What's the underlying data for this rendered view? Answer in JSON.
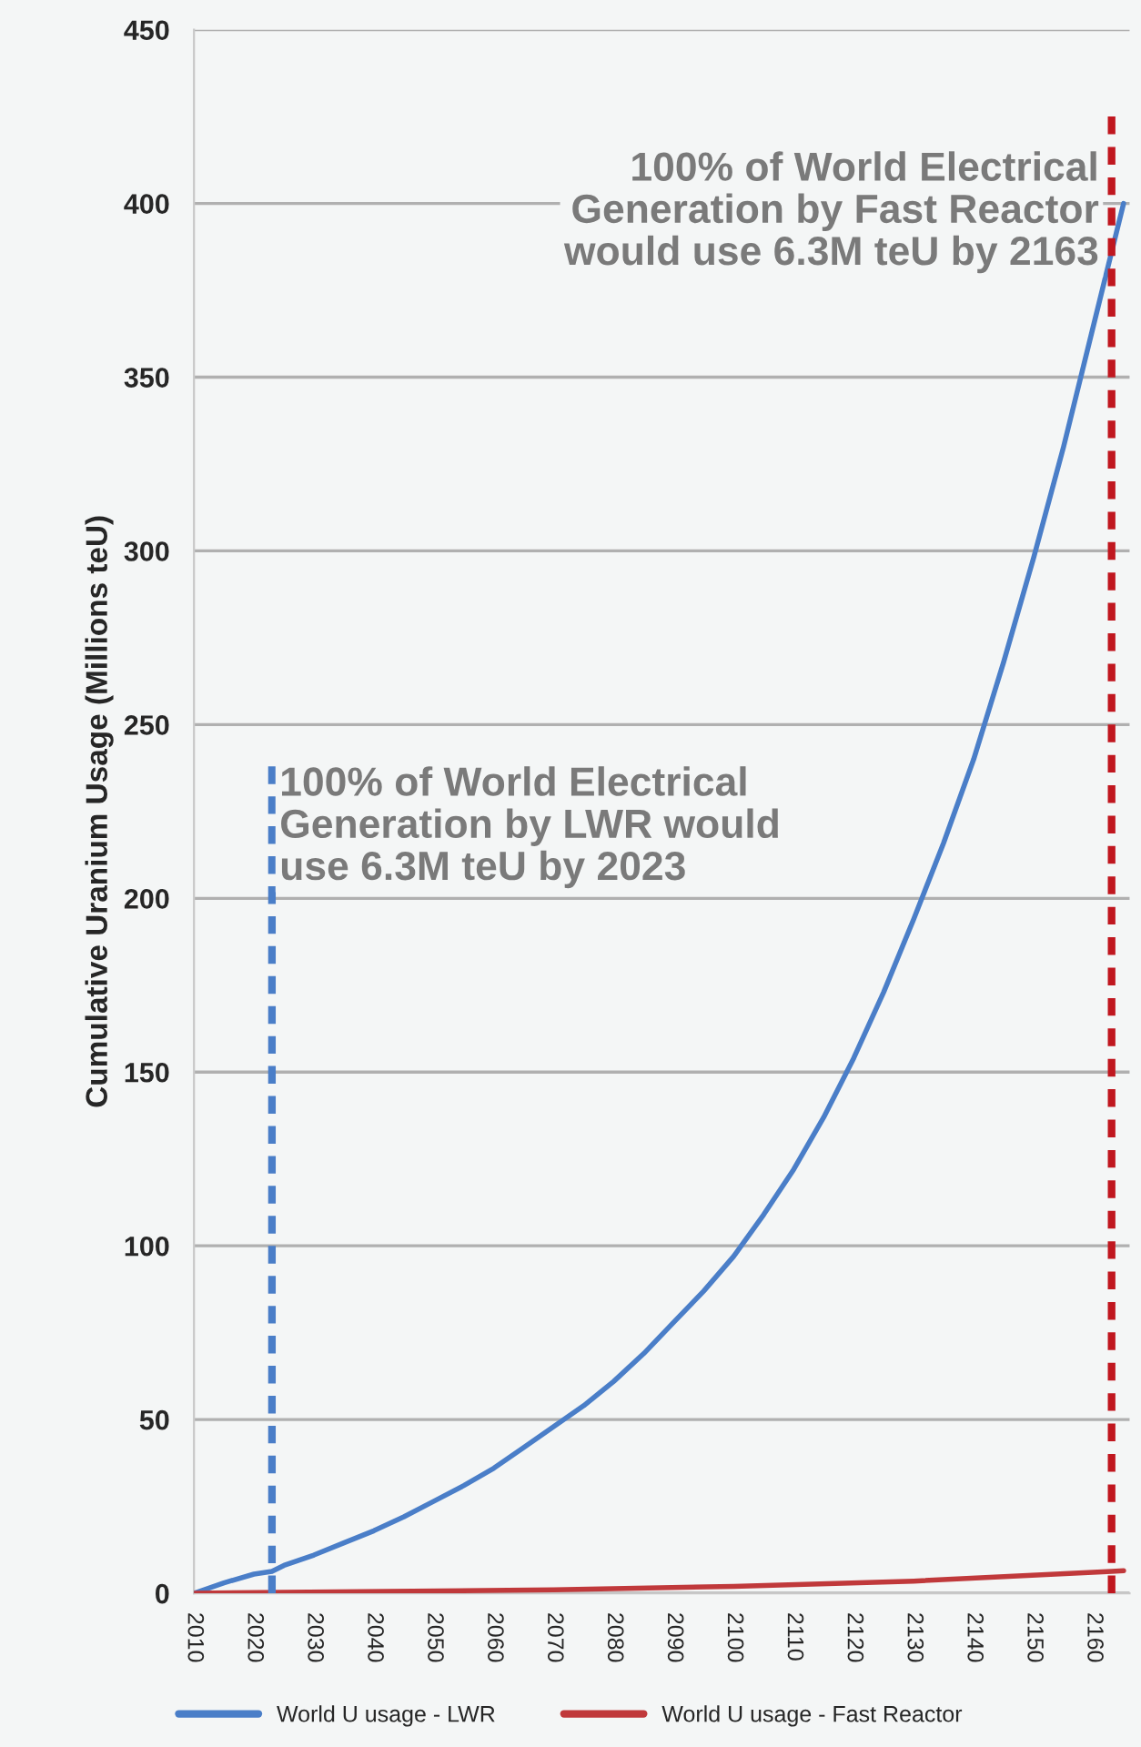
{
  "chart_data": {
    "type": "line",
    "ylabel": "Cumulative Uranium Usage (Millions teU)",
    "xlim": [
      2010,
      2166
    ],
    "xticks": [
      2010,
      2020,
      2030,
      2040,
      2050,
      2060,
      2070,
      2080,
      2090,
      2100,
      2110,
      2120,
      2130,
      2140,
      2150,
      2160
    ],
    "ylim": [
      0,
      450
    ],
    "yticks": [
      0,
      50,
      100,
      150,
      200,
      250,
      300,
      350,
      400,
      450
    ],
    "grid": "y",
    "legend": "bottom",
    "marker": "none",
    "series": [
      {
        "name": "World U usage - LWR",
        "color": "#4a7ec8",
        "line_style": "solid",
        "x": [
          2010,
          2015,
          2020,
          2023,
          2025,
          2030,
          2035,
          2040,
          2045,
          2050,
          2055,
          2060,
          2065,
          2070,
          2075,
          2080,
          2085,
          2090,
          2095,
          2100,
          2105,
          2110,
          2115,
          2120,
          2125,
          2130,
          2135,
          2140,
          2145,
          2150,
          2155,
          2160,
          2165
        ],
        "values": [
          0,
          3,
          5.5,
          6.3,
          8,
          11,
          14.5,
          18,
          22,
          26.5,
          31,
          36,
          42,
          48,
          54,
          61,
          69,
          78,
          87,
          97,
          109,
          122,
          137,
          154,
          173,
          194,
          216,
          240,
          268,
          298,
          330,
          365,
          400
        ]
      },
      {
        "name": "World U usage - Fast Reactor",
        "color": "#c0393b",
        "line_style": "solid",
        "x": [
          2010,
          2070,
          2100,
          2130,
          2163,
          2165
        ],
        "values": [
          0,
          1,
          2,
          3.5,
          6.3,
          6.5
        ]
      },
      {
        "color": "#4a7ec8",
        "line_style": "dashed",
        "x": [
          2023,
          2023
        ],
        "values": [
          0,
          238
        ]
      },
      {
        "color": "#c0171f",
        "line_style": "dashed",
        "x": [
          2163,
          2163
        ],
        "values": [
          0,
          425
        ]
      }
    ],
    "annotations": [
      {
        "text": "100% of World Electrical\nGeneration by LWR would\nuse 6.3M teU by 2023",
        "x": 2023,
        "y": 238
      },
      {
        "text": "100% of World Electrical\nGeneration by Fast Reactor\nwould use 6.3M teU by 2163",
        "x": 2163,
        "y": 415
      }
    ]
  }
}
